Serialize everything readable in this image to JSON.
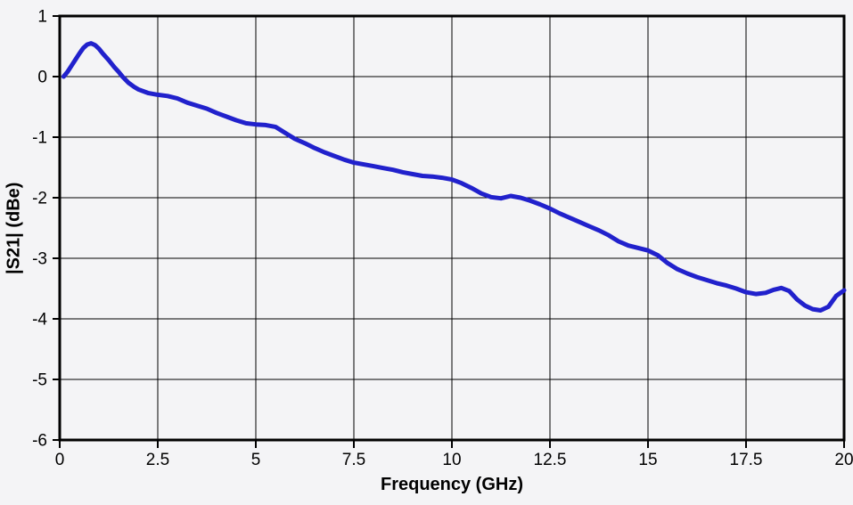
{
  "chart_data": {
    "type": "line",
    "title": "",
    "xlabel": "Frequency (GHz)",
    "ylabel": "|S21| (dBe)",
    "xlim": [
      0,
      20
    ],
    "ylim": [
      -6,
      1
    ],
    "xticks": [
      0,
      2.5,
      5,
      7.5,
      10,
      12.5,
      15,
      17.5,
      20
    ],
    "xtick_labels": [
      "0",
      "2.5",
      "5",
      "7.5",
      "10",
      "12.5",
      "15",
      "17.5",
      "20"
    ],
    "yticks": [
      1,
      0,
      -1,
      -2,
      -3,
      -4,
      -5,
      -6
    ],
    "ytick_labels": [
      "1",
      "0",
      "-1",
      "-2",
      "-3",
      "-4",
      "-5",
      "-6"
    ],
    "grid": true,
    "legend": false,
    "line_color": "#2121cc",
    "line_width": 5,
    "grid_color": "#000000",
    "axis_color": "#000000",
    "background_color": "#f4f4f6",
    "series": [
      {
        "name": "|S21|",
        "x": [
          0.1,
          0.2,
          0.3,
          0.4,
          0.5,
          0.6,
          0.7,
          0.8,
          0.9,
          1.0,
          1.1,
          1.25,
          1.4,
          1.5,
          1.6,
          1.75,
          1.9,
          2.0,
          2.25,
          2.5,
          2.75,
          3.0,
          3.25,
          3.5,
          3.75,
          4.0,
          4.25,
          4.5,
          4.75,
          5.0,
          5.25,
          5.5,
          5.75,
          6.0,
          6.25,
          6.5,
          6.75,
          7.0,
          7.25,
          7.5,
          7.75,
          8.0,
          8.25,
          8.5,
          8.75,
          9.0,
          9.25,
          9.5,
          9.75,
          10.0,
          10.25,
          10.5,
          10.75,
          11.0,
          11.25,
          11.5,
          11.75,
          12.0,
          12.25,
          12.5,
          12.75,
          13.0,
          13.25,
          13.5,
          13.75,
          14.0,
          14.25,
          14.5,
          14.75,
          15.0,
          15.25,
          15.5,
          15.75,
          16.0,
          16.25,
          16.5,
          16.75,
          17.0,
          17.25,
          17.5,
          17.75,
          18.0,
          18.2,
          18.4,
          18.6,
          18.8,
          19.0,
          19.2,
          19.4,
          19.6,
          19.8,
          20.0
        ],
        "y": [
          0.0,
          0.08,
          0.18,
          0.28,
          0.38,
          0.47,
          0.53,
          0.55,
          0.52,
          0.46,
          0.38,
          0.27,
          0.15,
          0.08,
          0.0,
          -0.1,
          -0.17,
          -0.21,
          -0.27,
          -0.3,
          -0.32,
          -0.36,
          -0.43,
          -0.48,
          -0.53,
          -0.6,
          -0.66,
          -0.72,
          -0.77,
          -0.79,
          -0.8,
          -0.83,
          -0.93,
          -1.03,
          -1.1,
          -1.18,
          -1.25,
          -1.31,
          -1.37,
          -1.42,
          -1.45,
          -1.48,
          -1.51,
          -1.54,
          -1.58,
          -1.61,
          -1.64,
          -1.65,
          -1.67,
          -1.7,
          -1.76,
          -1.84,
          -1.93,
          -1.99,
          -2.01,
          -1.97,
          -2.0,
          -2.05,
          -2.11,
          -2.18,
          -2.26,
          -2.33,
          -2.4,
          -2.47,
          -2.54,
          -2.62,
          -2.72,
          -2.79,
          -2.83,
          -2.87,
          -2.95,
          -3.08,
          -3.18,
          -3.25,
          -3.31,
          -3.36,
          -3.41,
          -3.45,
          -3.5,
          -3.56,
          -3.59,
          -3.57,
          -3.52,
          -3.49,
          -3.54,
          -3.68,
          -3.78,
          -3.84,
          -3.86,
          -3.8,
          -3.62,
          -3.53
        ]
      }
    ]
  }
}
